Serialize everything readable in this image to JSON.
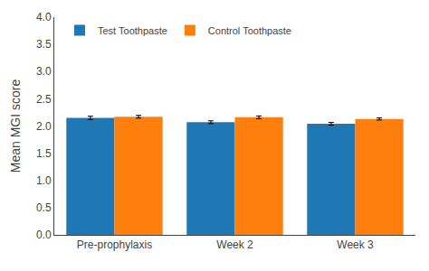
{
  "chart_data": {
    "type": "bar",
    "categories": [
      "Pre-prophylaxis",
      "Week 2",
      "Week 3"
    ],
    "series": [
      {
        "name": "Test Toothpaste",
        "values": [
          2.15,
          2.07,
          2.04
        ],
        "errors": [
          0.03,
          0.025,
          0.025
        ]
      },
      {
        "name": "Control Toothpaste",
        "values": [
          2.17,
          2.16,
          2.13
        ],
        "errors": [
          0.025,
          0.025,
          0.02
        ]
      }
    ],
    "ylabel": "Mean MGI score",
    "ylim": [
      0.0,
      4.0
    ],
    "yticks": [
      {
        "value": 0,
        "label": "0.0"
      },
      0.5,
      {
        "value": 1,
        "label": "1.0"
      },
      1.5,
      {
        "value": 2,
        "label": "2.0"
      },
      2.5,
      {
        "value": 3,
        "label": "3.0"
      },
      3.5,
      {
        "value": 4,
        "label": "4.0"
      }
    ],
    "grid": false,
    "legend": "upper left"
  }
}
